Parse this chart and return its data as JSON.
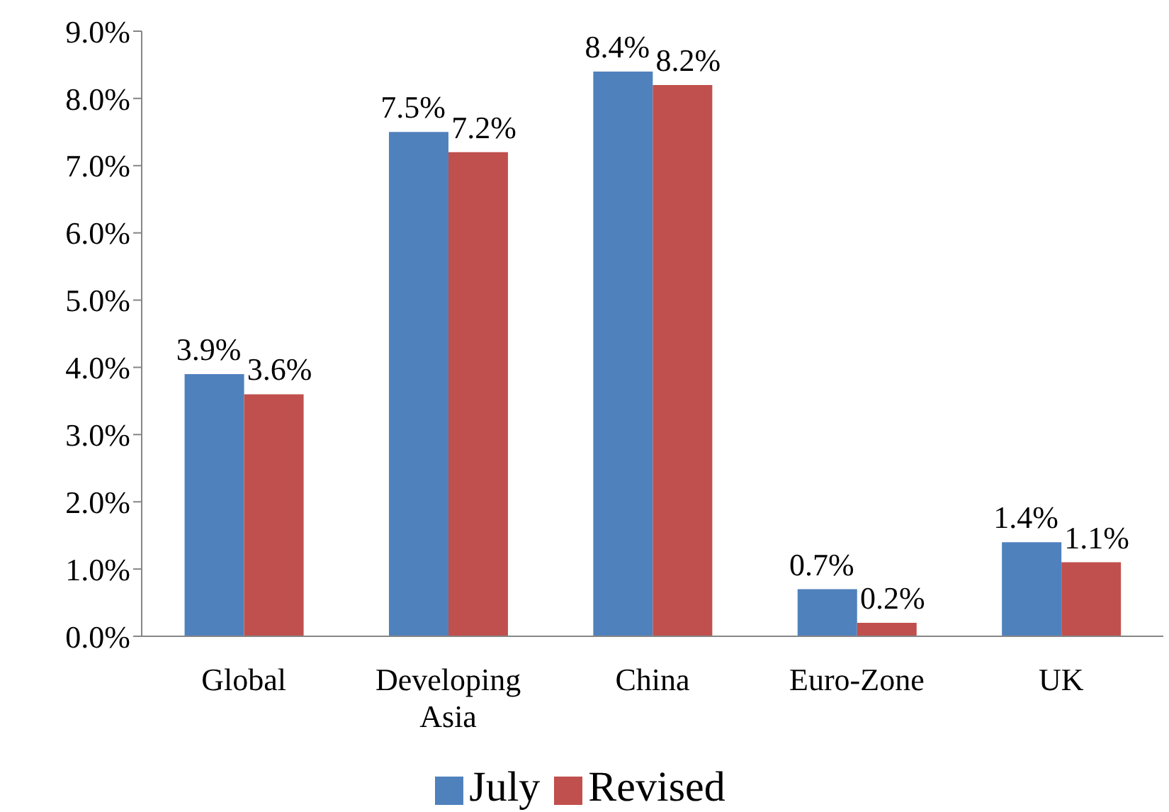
{
  "chart_data": {
    "type": "bar",
    "categories": [
      "Global",
      "Developing Asia",
      "China",
      "Euro-Zone",
      "UK"
    ],
    "series": [
      {
        "name": "July",
        "color": "#4f81bd",
        "values": [
          3.9,
          7.5,
          8.4,
          0.7,
          1.4
        ],
        "value_labels": [
          "3.9%",
          "7.5%",
          "8.4%",
          "0.7%",
          "1.4%"
        ]
      },
      {
        "name": "Revised",
        "color": "#c0504d",
        "values": [
          3.6,
          7.2,
          8.2,
          0.2,
          1.1
        ],
        "value_labels": [
          "3.6%",
          "7.2%",
          "8.2%",
          "0.2%",
          "1.1%"
        ]
      }
    ],
    "ylim": [
      0,
      9
    ],
    "yticks": [
      {
        "value": 0,
        "label": "0.0%"
      },
      {
        "value": 1,
        "label": "1.0%"
      },
      {
        "value": 2,
        "label": "2.0%"
      },
      {
        "value": 3,
        "label": "3.0%"
      },
      {
        "value": 4,
        "label": "4.0%"
      },
      {
        "value": 5,
        "label": "5.0%"
      },
      {
        "value": 6,
        "label": "6.0%"
      },
      {
        "value": 7,
        "label": "7.0%"
      },
      {
        "value": 8,
        "label": "8.0%"
      },
      {
        "value": 9,
        "label": "9.0%"
      }
    ],
    "grid": false,
    "legend": "bottom"
  }
}
